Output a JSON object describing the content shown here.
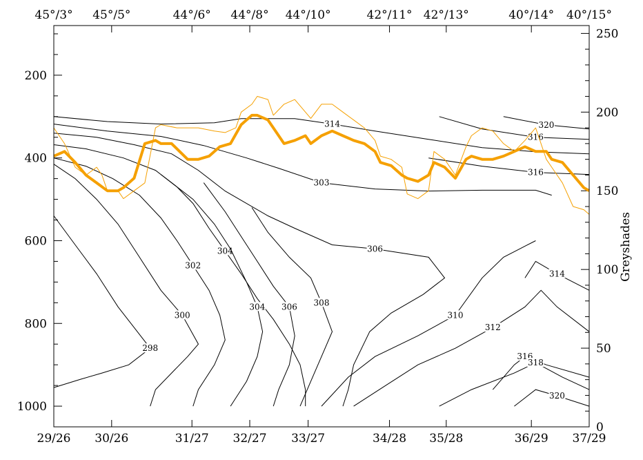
{
  "chart_data": {
    "type": "line",
    "x_range": [
      0,
      1
    ],
    "y_left": {
      "range": [
        1050,
        80
      ],
      "ticks": [
        200,
        400,
        600,
        800,
        1000
      ],
      "tick_labels": [
        "200",
        "400",
        "600",
        "800",
        "1000"
      ],
      "minor_step": 50
    },
    "y_right": {
      "label": "Greyshades",
      "range": [
        0,
        255
      ],
      "ticks": [
        0,
        50,
        100,
        150,
        200,
        250
      ],
      "tick_labels": [
        "0",
        "50",
        "100",
        "150",
        "200",
        "250"
      ],
      "minor_step": 10
    },
    "top_labels": [
      {
        "x": 0.0,
        "text": "45°/3°"
      },
      {
        "x": 0.108,
        "text": "45°/5°"
      },
      {
        "x": 0.258,
        "text": "44°/6°"
      },
      {
        "x": 0.366,
        "text": "44°/8°"
      },
      {
        "x": 0.475,
        "text": "44°/10°"
      },
      {
        "x": 0.627,
        "text": "42°/11°"
      },
      {
        "x": 0.733,
        "text": "42°/13°"
      },
      {
        "x": 0.892,
        "text": "40°/14°"
      },
      {
        "x": 1.0,
        "text": "40°/15°"
      }
    ],
    "bottom_labels": [
      {
        "x": 0.0,
        "text": "29/26"
      },
      {
        "x": 0.108,
        "text": "30/26"
      },
      {
        "x": 0.258,
        "text": "31/27"
      },
      {
        "x": 0.366,
        "text": "32/27"
      },
      {
        "x": 0.475,
        "text": "33/27"
      },
      {
        "x": 0.627,
        "text": "34/28"
      },
      {
        "x": 0.733,
        "text": "35/28"
      },
      {
        "x": 0.892,
        "text": "36/29"
      },
      {
        "x": 1.0,
        "text": "37/29"
      }
    ],
    "contours": [
      {
        "label": "314",
        "points": [
          [
            0.0,
            300
          ],
          [
            0.1,
            312
          ],
          [
            0.2,
            318
          ],
          [
            0.3,
            315
          ],
          [
            0.35,
            305
          ],
          [
            0.45,
            305
          ],
          [
            0.52,
            318
          ],
          [
            0.6,
            335
          ],
          [
            0.7,
            355
          ],
          [
            0.8,
            375
          ],
          [
            0.9,
            385
          ],
          [
            1.0,
            390
          ]
        ]
      },
      {
        "label": "303",
        "points": [
          [
            0.0,
            318
          ],
          [
            0.1,
            335
          ],
          [
            0.2,
            348
          ],
          [
            0.28,
            370
          ],
          [
            0.36,
            400
          ],
          [
            0.42,
            425
          ],
          [
            0.5,
            460
          ],
          [
            0.6,
            475
          ],
          [
            0.7,
            480
          ],
          [
            0.8,
            478
          ],
          [
            0.9,
            478
          ],
          [
            0.93,
            490
          ]
        ]
      },
      {
        "label": "306",
        "points": [
          [
            0.0,
            340
          ],
          [
            0.08,
            350
          ],
          [
            0.15,
            368
          ],
          [
            0.22,
            390
          ],
          [
            0.27,
            430
          ],
          [
            0.32,
            480
          ],
          [
            0.4,
            540
          ],
          [
            0.45,
            570
          ],
          [
            0.52,
            610
          ],
          [
            0.6,
            620
          ],
          [
            0.7,
            640
          ],
          [
            0.73,
            690
          ],
          [
            0.69,
            730
          ],
          [
            0.63,
            775
          ],
          [
            0.59,
            820
          ],
          [
            0.56,
            900
          ],
          [
            0.55,
            960
          ],
          [
            0.54,
            1000
          ]
        ]
      },
      {
        "label": "304",
        "points": [
          [
            0.0,
            368
          ],
          [
            0.06,
            378
          ],
          [
            0.13,
            400
          ],
          [
            0.19,
            430
          ],
          [
            0.23,
            470
          ],
          [
            0.26,
            510
          ],
          [
            0.29,
            570
          ],
          [
            0.32,
            625
          ],
          [
            0.35,
            680
          ],
          [
            0.38,
            740
          ],
          [
            0.41,
            790
          ],
          [
            0.44,
            850
          ],
          [
            0.46,
            900
          ],
          [
            0.47,
            960
          ],
          [
            0.47,
            1000
          ]
        ]
      },
      {
        "label": "316",
        "points": [
          [
            0.72,
            300
          ],
          [
            0.8,
            330
          ],
          [
            0.9,
            350
          ],
          [
            1.0,
            355
          ]
        ]
      },
      {
        "label": "316",
        "points": [
          [
            0.7,
            400
          ],
          [
            0.8,
            420
          ],
          [
            0.9,
            435
          ],
          [
            1.0,
            440
          ]
        ]
      },
      {
        "label": "320",
        "points": [
          [
            0.84,
            300
          ],
          [
            0.92,
            320
          ],
          [
            1.0,
            330
          ]
        ]
      },
      {
        "label": "298",
        "points": [
          [
            0.0,
            540
          ],
          [
            0.04,
            610
          ],
          [
            0.08,
            680
          ],
          [
            0.12,
            760
          ],
          [
            0.15,
            810
          ],
          [
            0.18,
            860
          ],
          [
            0.14,
            900
          ],
          [
            0.09,
            920
          ],
          [
            0.05,
            935
          ],
          [
            0.0,
            955
          ]
        ]
      },
      {
        "label": "300",
        "points": [
          [
            0.0,
            415
          ],
          [
            0.04,
            450
          ],
          [
            0.08,
            500
          ],
          [
            0.12,
            560
          ],
          [
            0.16,
            640
          ],
          [
            0.2,
            720
          ],
          [
            0.24,
            780
          ],
          [
            0.27,
            850
          ],
          [
            0.25,
            880
          ],
          [
            0.22,
            920
          ],
          [
            0.19,
            960
          ],
          [
            0.18,
            1000
          ]
        ]
      },
      {
        "label": "302",
        "points": [
          [
            0.0,
            400
          ],
          [
            0.06,
            420
          ],
          [
            0.11,
            450
          ],
          [
            0.16,
            490
          ],
          [
            0.2,
            545
          ],
          [
            0.23,
            600
          ],
          [
            0.26,
            660
          ],
          [
            0.29,
            720
          ],
          [
            0.31,
            780
          ],
          [
            0.32,
            840
          ],
          [
            0.3,
            900
          ],
          [
            0.27,
            960
          ],
          [
            0.26,
            1000
          ]
        ]
      },
      {
        "label": "304",
        "points": [
          [
            0.2,
            440
          ],
          [
            0.26,
            500
          ],
          [
            0.3,
            560
          ],
          [
            0.33,
            620
          ],
          [
            0.36,
            700
          ],
          [
            0.38,
            760
          ],
          [
            0.39,
            820
          ],
          [
            0.38,
            880
          ],
          [
            0.36,
            940
          ],
          [
            0.33,
            1000
          ]
        ]
      },
      {
        "label": "306",
        "points": [
          [
            0.28,
            460
          ],
          [
            0.32,
            530
          ],
          [
            0.35,
            590
          ],
          [
            0.38,
            650
          ],
          [
            0.41,
            710
          ],
          [
            0.44,
            760
          ],
          [
            0.45,
            830
          ],
          [
            0.44,
            900
          ],
          [
            0.42,
            960
          ],
          [
            0.41,
            1000
          ]
        ]
      },
      {
        "label": "308",
        "points": [
          [
            0.37,
            520
          ],
          [
            0.4,
            580
          ],
          [
            0.44,
            640
          ],
          [
            0.48,
            690
          ],
          [
            0.5,
            750
          ],
          [
            0.52,
            820
          ],
          [
            0.5,
            880
          ],
          [
            0.48,
            940
          ],
          [
            0.46,
            1000
          ]
        ]
      },
      {
        "label": "310",
        "points": [
          [
            0.5,
            1000
          ],
          [
            0.55,
            930
          ],
          [
            0.6,
            880
          ],
          [
            0.68,
            830
          ],
          [
            0.75,
            780
          ],
          [
            0.8,
            690
          ],
          [
            0.84,
            640
          ],
          [
            0.87,
            620
          ],
          [
            0.9,
            600
          ]
        ]
      },
      {
        "label": "312",
        "points": [
          [
            0.56,
            1000
          ],
          [
            0.62,
            950
          ],
          [
            0.68,
            900
          ],
          [
            0.75,
            860
          ],
          [
            0.82,
            810
          ],
          [
            0.88,
            760
          ],
          [
            0.91,
            720
          ],
          [
            0.94,
            760
          ],
          [
            1.0,
            820
          ]
        ]
      },
      {
        "label": "314",
        "points": [
          [
            0.88,
            690
          ],
          [
            0.9,
            650
          ],
          [
            0.94,
            680
          ],
          [
            1.0,
            720
          ]
        ]
      },
      {
        "label": "316",
        "points": [
          [
            0.82,
            960
          ],
          [
            0.86,
            900
          ],
          [
            0.88,
            880
          ],
          [
            0.92,
            900
          ],
          [
            1.0,
            930
          ]
        ]
      },
      {
        "label": "318",
        "points": [
          [
            0.72,
            1000
          ],
          [
            0.78,
            960
          ],
          [
            0.86,
            920
          ],
          [
            0.9,
            895
          ],
          [
            0.95,
            930
          ],
          [
            1.0,
            960
          ]
        ]
      },
      {
        "label": "320",
        "points": [
          [
            0.86,
            1000
          ],
          [
            0.9,
            960
          ],
          [
            0.94,
            975
          ],
          [
            1.0,
            1000
          ]
        ]
      }
    ],
    "series": [
      {
        "style": "thin",
        "x": [
          0.0,
          0.02,
          0.04,
          0.06,
          0.08,
          0.09,
          0.1,
          0.12,
          0.13,
          0.15,
          0.17,
          0.19,
          0.2,
          0.23,
          0.27,
          0.3,
          0.32,
          0.34,
          0.35,
          0.37,
          0.38,
          0.4,
          0.41,
          0.43,
          0.45,
          0.47,
          0.48,
          0.5,
          0.52,
          0.54,
          0.56,
          0.58,
          0.6,
          0.61,
          0.63,
          0.65,
          0.66,
          0.68,
          0.7,
          0.71,
          0.73,
          0.75,
          0.77,
          0.78,
          0.8,
          0.82,
          0.84,
          0.86,
          0.88,
          0.9,
          0.92,
          0.93,
          0.95,
          0.97,
          0.99,
          1.0
        ],
        "y": [
          190,
          180,
          165,
          160,
          165,
          160,
          150,
          150,
          145,
          150,
          155,
          190,
          192,
          190,
          190,
          188,
          187,
          190,
          200,
          205,
          210,
          208,
          198,
          205,
          208,
          200,
          196,
          205,
          205,
          200,
          195,
          190,
          182,
          172,
          170,
          165,
          148,
          145,
          150,
          175,
          170,
          160,
          178,
          185,
          190,
          188,
          180,
          175,
          182,
          190,
          170,
          165,
          155,
          140,
          138,
          135
        ]
      },
      {
        "style": "thick",
        "x": [
          0.0,
          0.02,
          0.04,
          0.06,
          0.08,
          0.1,
          0.12,
          0.13,
          0.15,
          0.17,
          0.19,
          0.2,
          0.22,
          0.25,
          0.27,
          0.29,
          0.31,
          0.33,
          0.35,
          0.37,
          0.38,
          0.4,
          0.41,
          0.43,
          0.45,
          0.47,
          0.48,
          0.5,
          0.52,
          0.54,
          0.56,
          0.58,
          0.6,
          0.61,
          0.63,
          0.65,
          0.66,
          0.68,
          0.7,
          0.71,
          0.73,
          0.75,
          0.77,
          0.78,
          0.8,
          0.82,
          0.84,
          0.86,
          0.88,
          0.9,
          0.92,
          0.93,
          0.95,
          0.97,
          0.99,
          1.0
        ],
        "y": [
          172,
          175,
          168,
          160,
          155,
          150,
          150,
          152,
          158,
          180,
          182,
          180,
          180,
          170,
          170,
          172,
          178,
          180,
          192,
          198,
          198,
          195,
          190,
          180,
          182,
          185,
          180,
          185,
          188,
          185,
          182,
          180,
          175,
          168,
          166,
          160,
          158,
          156,
          160,
          168,
          165,
          158,
          170,
          172,
          170,
          170,
          172,
          175,
          178,
          175,
          175,
          170,
          168,
          160,
          152,
          150
        ]
      }
    ]
  }
}
